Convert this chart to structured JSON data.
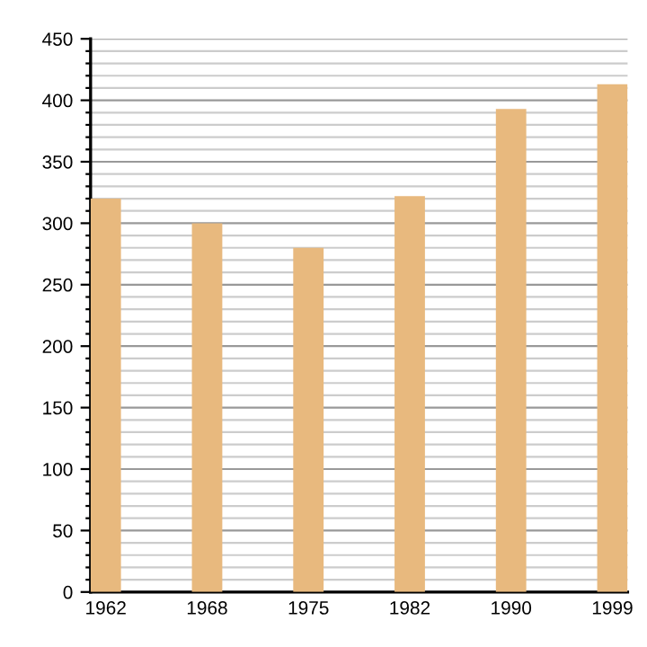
{
  "chart_data": {
    "type": "bar",
    "categories": [
      "1962",
      "1968",
      "1975",
      "1982",
      "1990",
      "1999"
    ],
    "values": [
      320,
      300,
      280,
      322,
      393,
      413
    ],
    "color": "#e8b97e",
    "ylim": [
      0,
      450
    ],
    "yticks": [
      0,
      {
        "value": 10,
        "label": null
      },
      {
        "value": 20,
        "label": null
      },
      {
        "value": 30,
        "label": null
      },
      {
        "value": 40,
        "label": null
      },
      50,
      {
        "value": 60,
        "label": null
      },
      {
        "value": 70,
        "label": null
      },
      {
        "value": 80,
        "label": null
      },
      {
        "value": 90,
        "label": null
      },
      100,
      {
        "value": 110,
        "label": null
      },
      {
        "value": 120,
        "label": null
      },
      {
        "value": 130,
        "label": null
      },
      {
        "value": 140,
        "label": null
      },
      150,
      {
        "value": 160,
        "label": null
      },
      {
        "value": 170,
        "label": null
      },
      {
        "value": 180,
        "label": null
      },
      {
        "value": 190,
        "label": null
      },
      200,
      {
        "value": 210,
        "label": null
      },
      {
        "value": 220,
        "label": null
      },
      {
        "value": 230,
        "label": null
      },
      {
        "value": 240,
        "label": null
      },
      250,
      {
        "value": 260,
        "label": null
      },
      {
        "value": 270,
        "label": null
      },
      {
        "value": 280,
        "label": null
      },
      {
        "value": 290,
        "label": null
      },
      300,
      {
        "value": 310,
        "label": null
      },
      {
        "value": 320,
        "label": null
      },
      {
        "value": 330,
        "label": null
      },
      {
        "value": 340,
        "label": null
      },
      350,
      {
        "value": 360,
        "label": null
      },
      {
        "value": 370,
        "label": null
      },
      {
        "value": 380,
        "label": null
      },
      {
        "value": 390,
        "label": null
      },
      400,
      {
        "value": 410,
        "label": null
      },
      {
        "value": 420,
        "label": null
      },
      {
        "value": 430,
        "label": null
      },
      {
        "value": 440,
        "label": null
      },
      450
    ],
    "grid": "y"
  }
}
